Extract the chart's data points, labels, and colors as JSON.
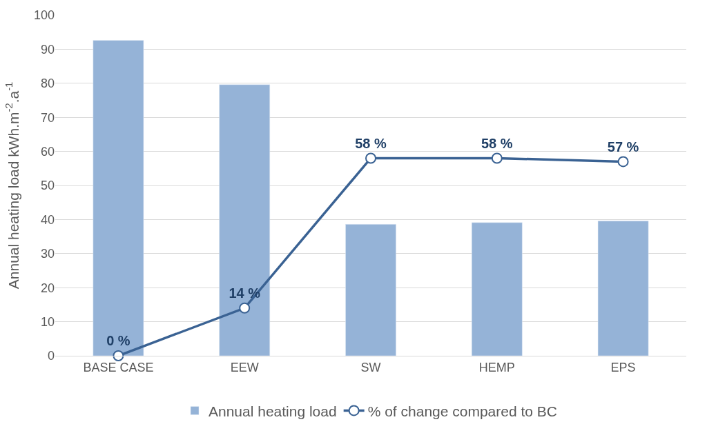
{
  "chart_data": {
    "type": "bar",
    "categories": [
      "BASE CASE",
      "EEW",
      "SW",
      "HEMP",
      "EPS"
    ],
    "ylabel": "Annual heating load kWh.m$^{-2}$.a$^{-1}$",
    "ylim": [
      0,
      100
    ],
    "yticks": [
      0,
      10,
      20,
      30,
      40,
      50,
      60,
      70,
      80,
      90,
      100
    ],
    "grid": "y",
    "legend": "bottom",
    "series": [
      {
        "name": "Annual heating load",
        "type": "bar",
        "color": "#95b3d7",
        "values": [
          92.6,
          79.6,
          38.6,
          39.1,
          39.6
        ]
      },
      {
        "name": "% of change compared to BC",
        "type": "line",
        "color": "#3a6293",
        "marker": "circle",
        "values": [
          0,
          14,
          58,
          58,
          57
        ],
        "value_labels": [
          "0 %",
          "14 %",
          "58 %",
          "58 %",
          "57 %"
        ]
      }
    ]
  }
}
